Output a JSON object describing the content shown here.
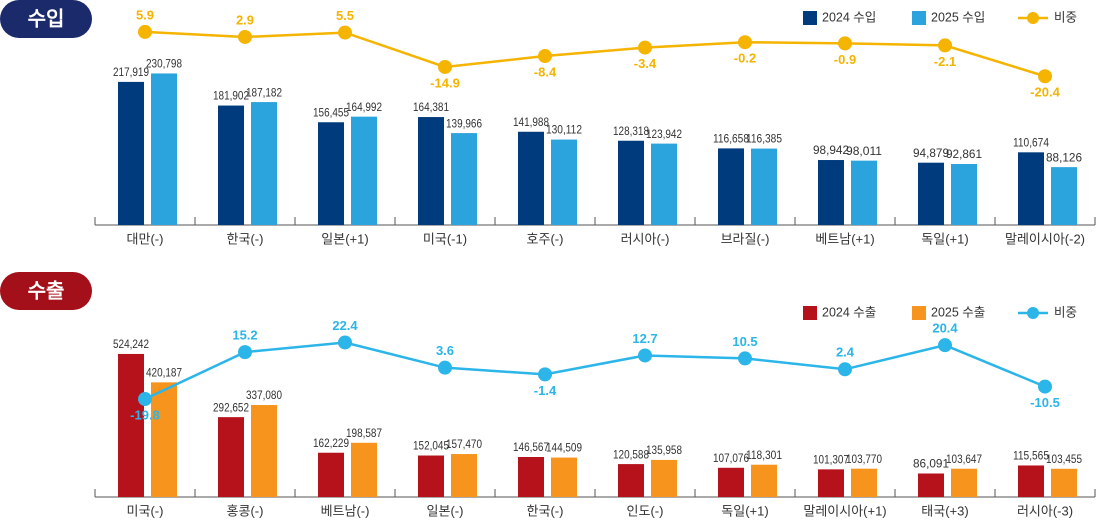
{
  "chart_data": [
    {
      "type": "bar",
      "title": "수입",
      "categories": [
        "대만(-)",
        "한국(-)",
        "일본(+1)",
        "미국(-1)",
        "호주(-)",
        "러시아(-)",
        "브라질(-)",
        "베트남(+1)",
        "독일(+1)",
        "말레이시아(-2)"
      ],
      "series": [
        {
          "name": "2024 수입",
          "color": "#003b7e",
          "values": [
            217919,
            181902,
            156455,
            164381,
            141988,
            128318,
            116658,
            98942,
            94879,
            110674
          ],
          "value_labels": [
            "217,919",
            "181,902",
            "156,455",
            "164,381",
            "141,988",
            "128,318",
            "116,658",
            "98,942",
            "94,879",
            "110,674"
          ]
        },
        {
          "name": "2025 수입",
          "color": "#2ba3dc",
          "values": [
            230798,
            187182,
            164992,
            139966,
            130112,
            123942,
            116385,
            98011,
            92861,
            88126
          ],
          "value_labels": [
            "230,798",
            "187,182",
            "164,992",
            "139,966",
            "130,112",
            "123,942",
            "116,385",
            "98,011",
            "92,861",
            "88,126"
          ]
        },
        {
          "name": "비중",
          "type": "line",
          "axis": "y2",
          "color": "#f5b400",
          "values": [
            5.9,
            2.9,
            5.5,
            -14.9,
            -8.4,
            -3.4,
            -0.2,
            -0.9,
            -2.1,
            -20.4
          ]
        }
      ],
      "ylim": [
        0,
        300000
      ],
      "y2lim": [
        -25,
        10
      ]
    },
    {
      "type": "bar",
      "title": "수출",
      "categories": [
        "미국(-)",
        "홍콩(-)",
        "베트남(-)",
        "일본(-)",
        "한국(-)",
        "인도(-)",
        "독일(+1)",
        "말레이시아(+1)",
        "태국(+3)",
        "러시아(-3)"
      ],
      "series": [
        {
          "name": "2024 수출",
          "color": "#b5121b",
          "values": [
            524242,
            292652,
            162229,
            152045,
            146567,
            120588,
            107076,
            101307,
            86091,
            115565
          ],
          "value_labels": [
            "524,242",
            "292,652",
            "162,229",
            "152,045",
            "146,567",
            "120,588",
            "107,076",
            "101,307",
            "86,091",
            "115,565"
          ]
        },
        {
          "name": "2025 수출",
          "color": "#f7941d",
          "values": [
            420187,
            337080,
            198587,
            157470,
            144509,
            135958,
            118301,
            103770,
            103647,
            103455
          ],
          "value_labels": [
            "420,187",
            "337,080",
            "198,587",
            "157,470",
            "144,509",
            "135,958",
            "118,301",
            "103,770",
            "103,647",
            "103,455"
          ]
        },
        {
          "name": "비중",
          "type": "line",
          "axis": "y2",
          "color": "#2bb5e8",
          "values": [
            -19.8,
            15.2,
            22.4,
            3.6,
            -1.4,
            12.7,
            10.5,
            2.4,
            20.4,
            -10.5
          ]
        }
      ],
      "ylim": [
        0,
        700000
      ],
      "y2lim": [
        -25,
        25
      ]
    }
  ]
}
